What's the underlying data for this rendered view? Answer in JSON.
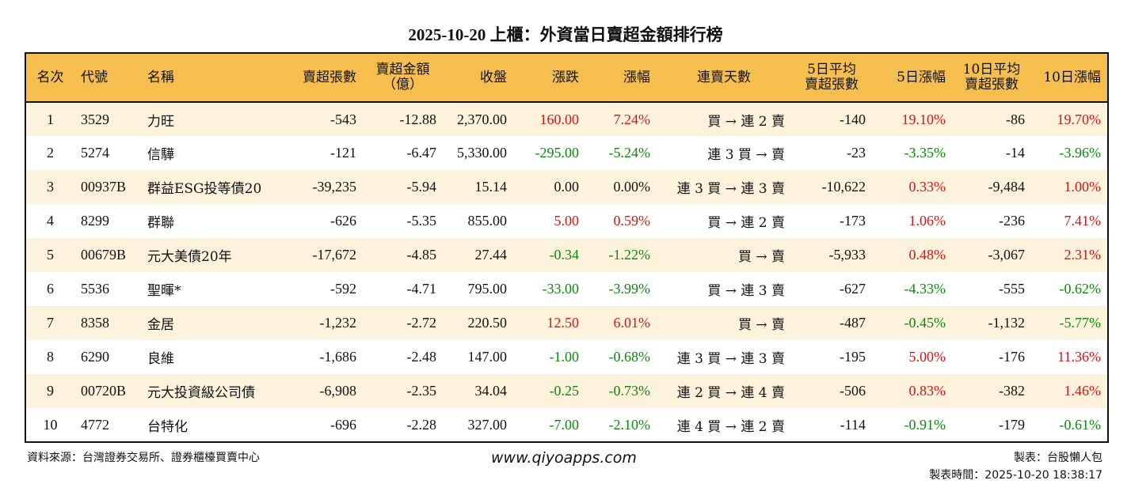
{
  "title": "2025-10-20 上櫃：外資當日賣超金額排行榜",
  "headers": [
    "名次",
    "代號",
    "名稱",
    "賣超張數",
    "賣超金額\n（億）",
    "收盤",
    "漲跌",
    "漲幅",
    "連賣天數",
    "5日平均\n賣超張數",
    "5日漲幅",
    "10日平均\n賣超張數",
    "10日漲幅"
  ],
  "rows": [
    [
      "1",
      "3529",
      "力旺",
      "-543",
      "-12.88",
      "2,370.00",
      "160.00",
      "7.24%",
      "買 → 連 2 賣",
      "-140",
      "19.10%",
      "-86",
      "19.70%"
    ],
    [
      "2",
      "5274",
      "信驊",
      "-121",
      "-6.47",
      "5,330.00",
      "-295.00",
      "-5.24%",
      "連 3 買 → 賣",
      "-23",
      "-3.35%",
      "-14",
      "-3.96%"
    ],
    [
      "3",
      "00937B",
      "群益ESG投等債20",
      "-39,235",
      "-5.94",
      "15.14",
      "0.00",
      "0.00%",
      "連 3 買 → 連 3 賣",
      "-10,622",
      "0.33%",
      "-9,484",
      "1.00%"
    ],
    [
      "4",
      "8299",
      "群聯",
      "-626",
      "-5.35",
      "855.00",
      "5.00",
      "0.59%",
      "買 → 連 2 賣",
      "-173",
      "1.06%",
      "-236",
      "7.41%"
    ],
    [
      "5",
      "00679B",
      "元大美債20年",
      "-17,672",
      "-4.85",
      "27.44",
      "-0.34",
      "-1.22%",
      "買 → 賣",
      "-5,933",
      "0.48%",
      "-3,067",
      "2.31%"
    ],
    [
      "6",
      "5536",
      "聖暉*",
      "-592",
      "-4.71",
      "795.00",
      "-33.00",
      "-3.99%",
      "買 → 連 3 賣",
      "-627",
      "-4.33%",
      "-555",
      "-0.62%"
    ],
    [
      "7",
      "8358",
      "金居",
      "-1,232",
      "-2.72",
      "220.50",
      "12.50",
      "6.01%",
      "買 → 賣",
      "-487",
      "-0.45%",
      "-1,132",
      "-5.77%"
    ],
    [
      "8",
      "6290",
      "良維",
      "-1,686",
      "-2.48",
      "147.00",
      "-1.00",
      "-0.68%",
      "連 3 買 → 連 3 賣",
      "-195",
      "5.00%",
      "-176",
      "11.36%"
    ],
    [
      "9",
      "00720B",
      "元大投資級公司債",
      "-6,908",
      "-2.35",
      "34.04",
      "-0.25",
      "-0.73%",
      "連 2 買 → 連 4 賣",
      "-506",
      "0.83%",
      "-382",
      "1.46%"
    ],
    [
      "10",
      "4772",
      "台特化",
      "-696",
      "-2.28",
      "327.00",
      "-7.00",
      "-2.10%",
      "連 4 買 → 連 2 賣",
      "-114",
      "-0.91%",
      "-179",
      "-0.61%"
    ]
  ],
  "footer": {
    "source": "資料來源：台灣證券交易所、證券櫃檯買賣中心",
    "site": "www.qiyoapps.com",
    "maker": "製表：台股懶人包",
    "time": "製表時間：2025-10-20 18:38:17"
  },
  "colors": {
    "header_bg": "#F5BE4E",
    "stripe": "#FDF3DC",
    "up": "#E01010",
    "down": "#0A8A0A"
  }
}
